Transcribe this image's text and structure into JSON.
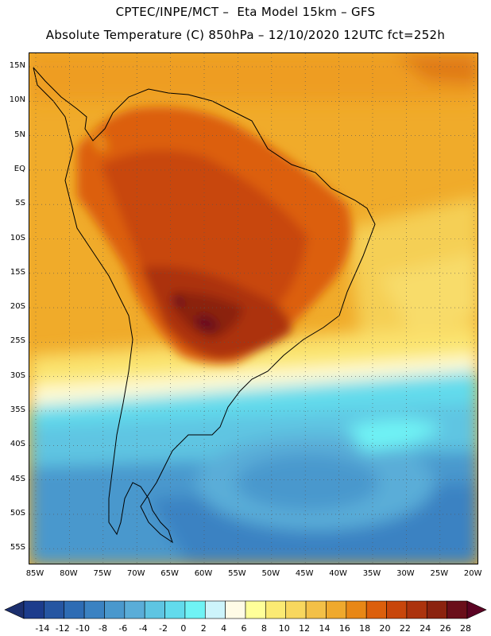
{
  "header": {
    "line1": "CPTEC/INPE/MCT –  Eta Model 15km – GFS",
    "line2": "Absolute Temperature (C) 850hPa – 12/10/2020 12UTC fct=252h"
  },
  "map": {
    "lat_labels": [
      "15N",
      "10N",
      "5N",
      "EQ",
      "5S",
      "10S",
      "15S",
      "20S",
      "25S",
      "30S",
      "35S",
      "40S",
      "45S",
      "50S",
      "55S"
    ],
    "lon_labels": [
      "85W",
      "80W",
      "75W",
      "70W",
      "65W",
      "60W",
      "55W",
      "50W",
      "45W",
      "40W",
      "35W",
      "30W",
      "25W",
      "20W"
    ],
    "grid": "dotted"
  },
  "colorbar": {
    "labels": [
      "-14",
      "-12",
      "-10",
      "-8",
      "-6",
      "-4",
      "-2",
      "0",
      "2",
      "4",
      "6",
      "8",
      "10",
      "12",
      "14",
      "16",
      "18",
      "20",
      "22",
      "24",
      "26",
      "28"
    ],
    "colors": [
      "#1c3c8c",
      "#2656a2",
      "#2e6cb4",
      "#3b82c2",
      "#4a98cd",
      "#5aadd8",
      "#5ec5e2",
      "#62dbec",
      "#6ff3f5",
      "#cdf4fb",
      "#fffbe6",
      "#ffff99",
      "#fbea73",
      "#f8d75e",
      "#f3c047",
      "#efa92d",
      "#e88716",
      "#dc5f0c",
      "#c8460b",
      "#ac330d",
      "#8b230f",
      "#6a0f1a"
    ],
    "arrow_left": "#1c2f6e",
    "arrow_right": "#5b0323"
  }
}
